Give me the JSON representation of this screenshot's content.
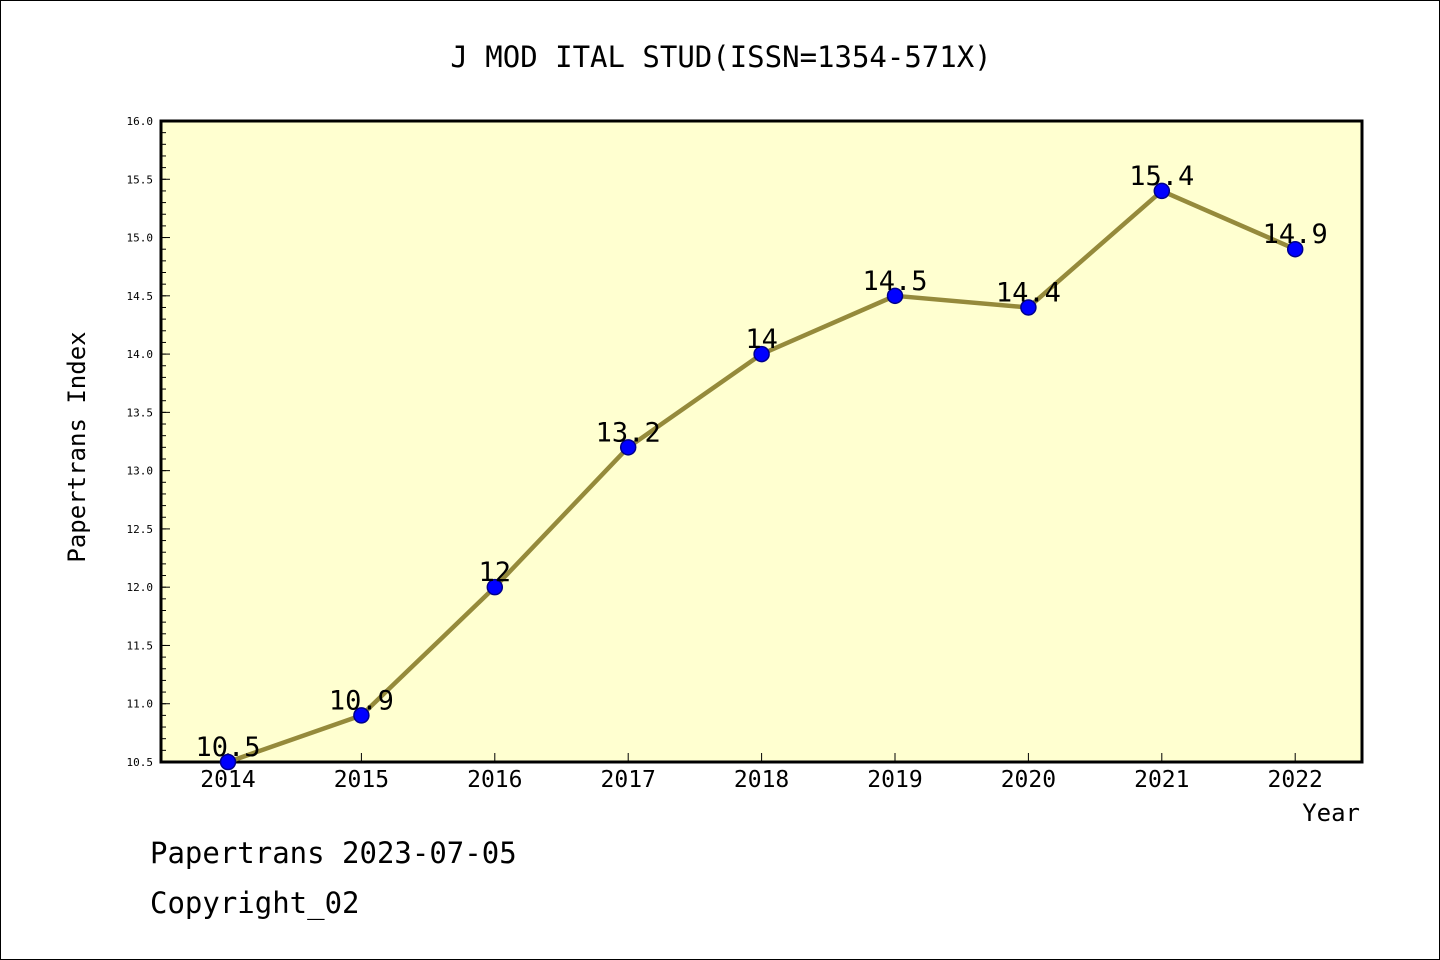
{
  "chart_data": {
    "type": "line",
    "title": "J MOD ITAL STUD(ISSN=1354-571X)",
    "xlabel": "Year",
    "ylabel": "Papertrans Index",
    "categories": [
      "2014",
      "2015",
      "2016",
      "2017",
      "2018",
      "2019",
      "2020",
      "2021",
      "2022"
    ],
    "series": [
      {
        "values": [
          10.5,
          10.9,
          12,
          13.2,
          14,
          14.5,
          14.4,
          15.4,
          14.9
        ],
        "data_labels": [
          "10.5",
          "10.9",
          "12",
          "13.2",
          "14",
          "14.5",
          "14.4",
          "15.4",
          "14.9"
        ]
      }
    ],
    "ylim": [
      10.5,
      16.0
    ],
    "y_ticks": [
      "10.5",
      "11.0",
      "11.5",
      "12.0",
      "12.5",
      "13.0",
      "13.5",
      "14.0",
      "14.5",
      "15.0",
      "15.5",
      "16.0"
    ],
    "grid": false,
    "legend": "none",
    "colors": {
      "plot_background": "#ffffd0",
      "line": "#958a3b",
      "marker": "#0000ff",
      "marker_edge": "#00008b"
    }
  },
  "footer": {
    "line1": "Papertrans 2023-07-05",
    "line2": "Copyright_02"
  }
}
